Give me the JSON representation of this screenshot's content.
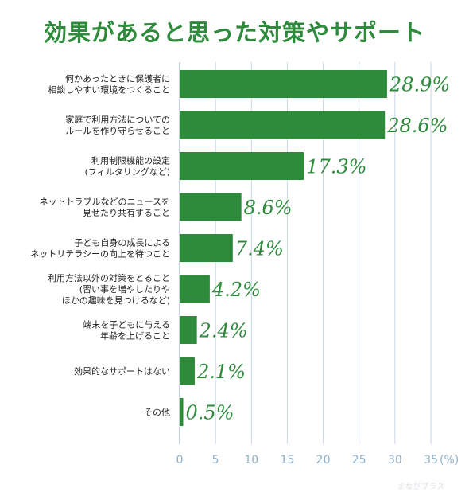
{
  "chart_data": {
    "type": "bar",
    "orientation": "horizontal",
    "title": "効果があると思った対策やサポート",
    "unit": "(%)",
    "categories": [
      [
        "何かあったときに保護者に",
        "相談しやすい環境をつくること"
      ],
      [
        "家庭で利用方法についての",
        "ルールを作り守らせること"
      ],
      [
        "利用制限機能の設定",
        "(フィルタリングなど)"
      ],
      [
        "ネットトラブルなどのニュースを",
        "見せたり共有すること"
      ],
      [
        "子ども自身の成長による",
        "ネットリテラシーの向上を待つこと"
      ],
      [
        "利用方法以外の対策をとること",
        "(習い事を増やしたりや",
        "ほかの趣味を見つけるなど)"
      ],
      [
        "端末を子どもに与える",
        "年齢を上げること"
      ],
      [
        "効果的なサポートはない"
      ],
      [
        "その他"
      ]
    ],
    "values": [
      28.9,
      28.6,
      17.3,
      8.6,
      7.4,
      4.2,
      2.4,
      2.1,
      0.5
    ],
    "value_labels": [
      "28.9%",
      "28.6%",
      "17.3%",
      "8.6%",
      "7.4%",
      "4.2%",
      "2.4%",
      "2.1%",
      "0.5%"
    ],
    "xlim": [
      0,
      35
    ],
    "xticks": [
      "0",
      "5",
      "10",
      "15",
      "20",
      "25",
      "30",
      "35"
    ],
    "grid": true,
    "colors": {
      "bar": "#2e8b3c",
      "title": "#2e8b3c",
      "value_label": "#2e8b3c",
      "grid": "#c9d6e6",
      "tick": "#8fb0c8"
    }
  },
  "watermark": "まなびプラス"
}
